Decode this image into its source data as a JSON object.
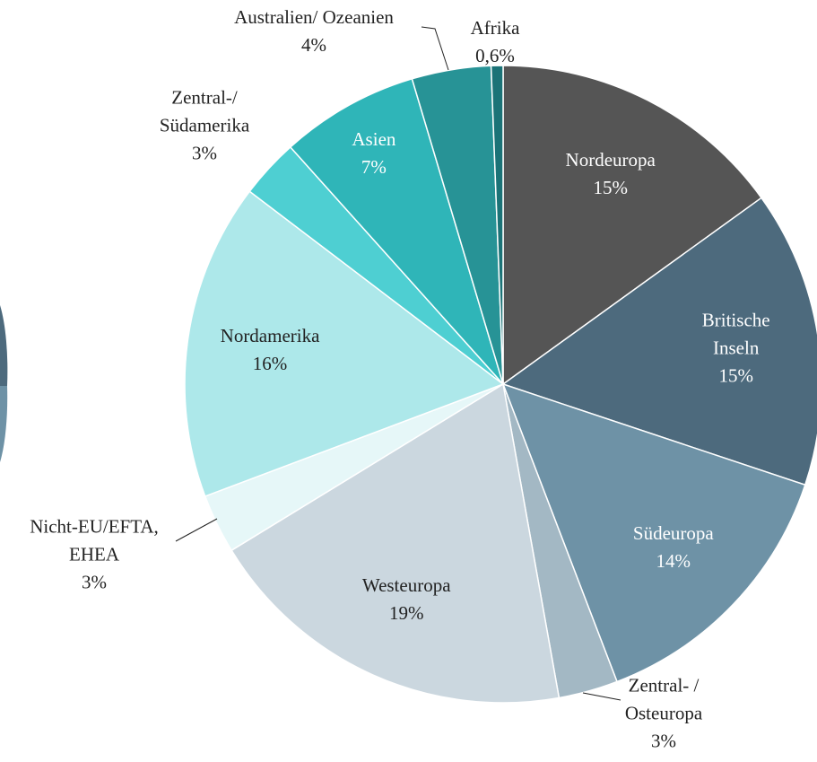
{
  "chart_data": {
    "type": "pie",
    "categories": [
      "Nordeuropa",
      "Britische Inseln",
      "Südeuropa",
      "Zentral- /\nOsteuropa",
      "Westeuropa",
      "Nicht-EU/EFTA,\nEHEA",
      "Nordamerika",
      "Zentral-/\nSüdamerika",
      "Asien",
      "Australien/ Ozeanien",
      "Afrika"
    ],
    "values": [
      15,
      15,
      14,
      3,
      19,
      3,
      16,
      3,
      7,
      4,
      0.6
    ],
    "value_labels": [
      "15%",
      "15%",
      "14%",
      "3%",
      "19%",
      "3%",
      "16%",
      "3%",
      "7%",
      "4%",
      "0,6%"
    ],
    "colors": [
      "#555555",
      "#4d6a7d",
      "#6e92a6",
      "#a3b8c4",
      "#cbd7df",
      "#e6f7f8",
      "#ade8ea",
      "#4ecfd2",
      "#2fb5b8",
      "#279396",
      "#1b7377"
    ]
  }
}
